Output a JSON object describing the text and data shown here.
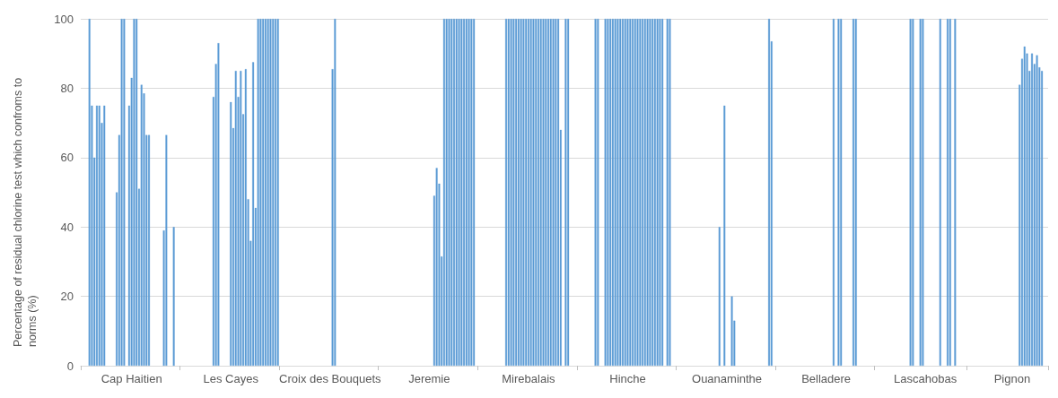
{
  "chart_data": {
    "type": "bar",
    "ylabel": "Percentage of residual chlorine test which confroms to norms (%)",
    "categories": [
      null,
      null,
      null,
      null,
      null,
      null,
      null,
      null,
      null,
      null,
      null,
      null,
      null,
      null,
      null,
      null,
      null,
      null,
      null,
      null,
      "Cap Haitien",
      null,
      null,
      null,
      null,
      null,
      null,
      null,
      null,
      null,
      null,
      null,
      null,
      null,
      null,
      null,
      null,
      null,
      null,
      null,
      null,
      null,
      null,
      null,
      null,
      null,
      null,
      null,
      null,
      null,
      null,
      null,
      null,
      null,
      null,
      null,
      null,
      null,
      null,
      null,
      "Les Cayes",
      null,
      null,
      null,
      null,
      null,
      null,
      null,
      null,
      null,
      null,
      null,
      null,
      null,
      null,
      null,
      null,
      null,
      null,
      null,
      null,
      null,
      null,
      null,
      null,
      null,
      null,
      null,
      null,
      null,
      null,
      null,
      null,
      null,
      null,
      null,
      null,
      null,
      null,
      null,
      "Croix des Bouquets",
      null,
      null,
      null,
      null,
      null,
      null,
      null,
      null,
      null,
      null,
      null,
      null,
      null,
      null,
      null,
      null,
      null,
      null,
      null,
      null,
      null,
      null,
      null,
      null,
      null,
      null,
      null,
      null,
      null,
      null,
      null,
      null,
      null,
      null,
      null,
      null,
      null,
      null,
      null,
      "Jeremie",
      null,
      null,
      null,
      null,
      null,
      null,
      null,
      null,
      null,
      null,
      null,
      null,
      null,
      null,
      null,
      null,
      null,
      null,
      null,
      null,
      null,
      null,
      null,
      null,
      null,
      null,
      null,
      null,
      null,
      null,
      null,
      null,
      null,
      null,
      null,
      null,
      null,
      null,
      null,
      "Mirebalais",
      null,
      null,
      null,
      null,
      null,
      null,
      null,
      null,
      null,
      null,
      null,
      null,
      null,
      null,
      null,
      null,
      null,
      null,
      null,
      null,
      null,
      null,
      null,
      null,
      null,
      null,
      null,
      null,
      null,
      null,
      null,
      null,
      null,
      null,
      null,
      null,
      null,
      null,
      null,
      "Hinche",
      null,
      null,
      null,
      null,
      null,
      null,
      null,
      null,
      null,
      null,
      null,
      null,
      null,
      null,
      null,
      null,
      null,
      null,
      null,
      null,
      null,
      null,
      null,
      null,
      null,
      null,
      null,
      null,
      null,
      null,
      null,
      null,
      null,
      null,
      null,
      null,
      null,
      null,
      null,
      "Ouanaminthe",
      null,
      null,
      null,
      null,
      null,
      null,
      null,
      null,
      null,
      null,
      null,
      null,
      null,
      null,
      null,
      null,
      null,
      null,
      null,
      null,
      null,
      null,
      null,
      null,
      null,
      null,
      null,
      null,
      null,
      null,
      null,
      null,
      null,
      null,
      null,
      null,
      null,
      null,
      null,
      "Belladere",
      null,
      null,
      null,
      null,
      null,
      null,
      null,
      null,
      null,
      null,
      null,
      null,
      null,
      null,
      null,
      null,
      null,
      null,
      null,
      null,
      null,
      null,
      null,
      null,
      null,
      null,
      null,
      null,
      null,
      null,
      null,
      null,
      null,
      null,
      null,
      null,
      null,
      null,
      null,
      "Lascahobas",
      null,
      null,
      null,
      null,
      null,
      null,
      null,
      null,
      null,
      null,
      null,
      null,
      null,
      null,
      null,
      null,
      null,
      null,
      null,
      null,
      null,
      null,
      null,
      null,
      null,
      null,
      null,
      null,
      null,
      null,
      null,
      null,
      null,
      null,
      "Pignon",
      null,
      null,
      null,
      null,
      null,
      null,
      null,
      null,
      null,
      null,
      null,
      null,
      null,
      null
    ],
    "values": [
      null,
      null,
      null,
      100,
      75,
      60,
      75,
      75,
      70,
      75,
      null,
      null,
      null,
      null,
      50,
      66.5,
      100,
      100,
      null,
      75,
      83,
      100,
      100,
      51,
      81,
      78.5,
      66.5,
      66.5,
      null,
      null,
      null,
      null,
      null,
      39,
      66.5,
      null,
      null,
      40,
      null,
      null,
      null,
      null,
      null,
      null,
      null,
      null,
      null,
      null,
      null,
      null,
      null,
      null,
      null,
      77.5,
      87,
      93,
      null,
      null,
      null,
      null,
      76,
      68.5,
      85,
      77.5,
      85,
      72.5,
      85.5,
      48,
      36,
      87.5,
      45.5,
      100,
      100,
      100,
      100,
      100,
      100,
      100,
      100,
      100,
      null,
      null,
      null,
      null,
      null,
      null,
      null,
      null,
      null,
      null,
      null,
      null,
      null,
      null,
      null,
      null,
      null,
      null,
      null,
      null,
      null,
      85.5,
      100,
      null,
      null,
      null,
      null,
      null,
      null,
      null,
      null,
      null,
      null,
      null,
      null,
      null,
      null,
      null,
      null,
      null,
      null,
      null,
      null,
      null,
      null,
      null,
      null,
      null,
      null,
      null,
      null,
      null,
      null,
      null,
      null,
      null,
      null,
      null,
      null,
      null,
      null,
      null,
      49,
      57,
      52.5,
      31.5,
      100,
      100,
      100,
      100,
      100,
      100,
      100,
      100,
      100,
      100,
      100,
      100,
      100,
      null,
      null,
      null,
      null,
      null,
      null,
      null,
      null,
      null,
      null,
      null,
      null,
      100,
      100,
      100,
      100,
      100,
      100,
      100,
      100,
      100,
      100,
      100,
      100,
      100,
      100,
      100,
      100,
      100,
      100,
      100,
      100,
      100,
      100,
      68,
      null,
      100,
      100,
      null,
      null,
      null,
      null,
      null,
      null,
      null,
      null,
      null,
      null,
      100,
      100,
      null,
      null,
      100,
      100,
      100,
      100,
      100,
      100,
      100,
      100,
      100,
      100,
      100,
      100,
      100,
      100,
      100,
      100,
      100,
      100,
      100,
      100,
      100,
      100,
      100,
      100,
      null,
      100,
      100,
      null,
      null,
      null,
      null,
      null,
      null,
      null,
      null,
      null,
      null,
      null,
      null,
      null,
      null,
      null,
      null,
      null,
      null,
      null,
      40,
      null,
      75,
      null,
      null,
      20,
      13,
      null,
      null,
      null,
      null,
      null,
      null,
      null,
      null,
      null,
      null,
      null,
      null,
      null,
      100,
      93.5,
      null,
      null,
      null,
      null,
      null,
      null,
      null,
      null,
      null,
      null,
      null,
      null,
      null,
      null,
      null,
      null,
      null,
      null,
      null,
      null,
      null,
      null,
      null,
      null,
      100,
      null,
      100,
      100,
      null,
      null,
      null,
      null,
      100,
      100,
      null,
      null,
      null,
      null,
      null,
      null,
      null,
      null,
      null,
      null,
      null,
      null,
      null,
      null,
      null,
      null,
      null,
      null,
      null,
      null,
      null,
      100,
      100,
      null,
      null,
      100,
      100,
      null,
      null,
      null,
      null,
      null,
      null,
      100,
      null,
      null,
      100,
      100,
      null,
      100,
      null,
      null,
      null,
      null,
      null,
      null,
      null,
      null,
      null,
      null,
      null,
      null,
      null,
      null,
      null,
      null,
      null,
      null,
      null,
      null,
      null,
      null,
      null,
      null,
      null,
      81,
      88.5,
      92,
      90,
      85,
      90,
      87,
      89.5,
      86,
      85,
      null,
      null
    ],
    "color": "#5b9bd5",
    "ylim": [
      0,
      100
    ],
    "yticks": [
      0,
      20,
      40,
      60,
      80,
      100
    ],
    "grid": "y"
  }
}
